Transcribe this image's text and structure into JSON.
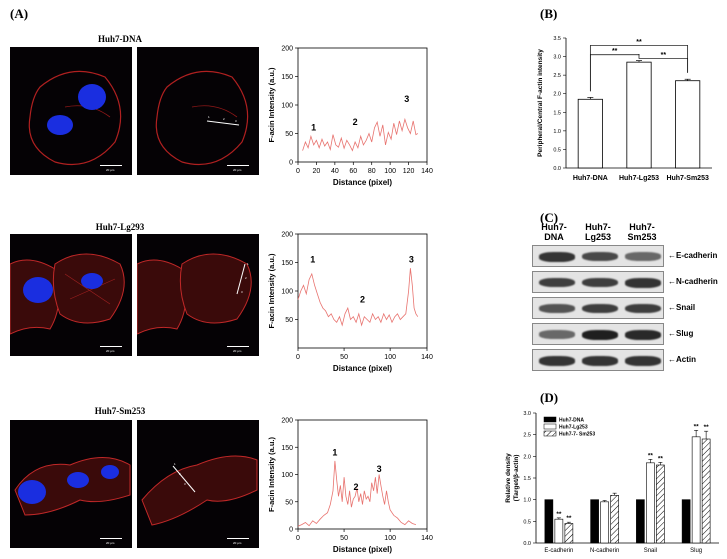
{
  "panel_labels": {
    "a": "(A)",
    "b": "(B)",
    "c": "(C)",
    "d": "(D)"
  },
  "panel_a": {
    "rows": [
      {
        "title": "Huh7-DNA",
        "scale_text": "20 µm",
        "line_numbers": [
          "1",
          "2",
          "3"
        ]
      },
      {
        "title": "Huh7-Lg293",
        "scale_text": "20 µm",
        "line_numbers": [
          "1",
          "2",
          "3"
        ]
      },
      {
        "title": "Huh7-Sm253",
        "scale_text": "20 µm",
        "line_numbers": [
          "1",
          "2",
          "3"
        ]
      }
    ]
  },
  "colors": {
    "profile_line": "#e8736f",
    "bar_fill": "#ffffff",
    "bar_edge": "#000000",
    "blot_dark": "#1a1a1a"
  },
  "chart_data": [
    {
      "type": "line",
      "ylabel": "F-acin Intensity (a.u.)",
      "xlabel": "Distance (pixel)",
      "xlim": [
        0,
        140
      ],
      "ylim": [
        0,
        200
      ],
      "xticks": [
        "0",
        "20",
        "40",
        "60",
        "80",
        "100",
        "120",
        "140"
      ],
      "yticks": [
        "0",
        "50",
        "100",
        "150",
        "200"
      ],
      "annotations": [
        {
          "text": "1",
          "x": 17,
          "y": 55
        },
        {
          "text": "2",
          "x": 62,
          "y": 65
        },
        {
          "text": "3",
          "x": 118,
          "y": 105
        }
      ],
      "x": [
        5,
        8,
        11,
        14,
        17,
        20,
        23,
        26,
        29,
        32,
        35,
        38,
        41,
        44,
        47,
        50,
        53,
        56,
        59,
        62,
        65,
        68,
        71,
        74,
        77,
        80,
        83,
        86,
        89,
        92,
        95,
        98,
        101,
        104,
        107,
        110,
        113,
        116,
        119,
        122,
        125,
        128,
        130
      ],
      "y": [
        20,
        35,
        25,
        45,
        30,
        38,
        25,
        40,
        28,
        35,
        22,
        48,
        30,
        26,
        42,
        24,
        38,
        30,
        20,
        35,
        25,
        45,
        30,
        38,
        50,
        35,
        60,
        70,
        45,
        65,
        30,
        52,
        40,
        68,
        48,
        72,
        55,
        75,
        60,
        50,
        72,
        48,
        50
      ]
    },
    {
      "type": "line",
      "ylabel": "F-acin Intensity (a.u.)",
      "xlabel": "Distance (pixel)",
      "xlim": [
        0,
        140
      ],
      "ylim": [
        0,
        200
      ],
      "xticks": [
        "0",
        "50",
        "100",
        "140"
      ],
      "yticks": [
        "50",
        "100",
        "150",
        "200"
      ],
      "annotations": [
        {
          "text": "1",
          "x": 16,
          "y": 150
        },
        {
          "text": "2",
          "x": 70,
          "y": 80
        },
        {
          "text": "3",
          "x": 123,
          "y": 150
        }
      ],
      "x": [
        0,
        3,
        6,
        9,
        12,
        15,
        18,
        21,
        24,
        27,
        30,
        33,
        36,
        39,
        42,
        45,
        48,
        51,
        54,
        57,
        60,
        63,
        66,
        69,
        72,
        75,
        78,
        81,
        84,
        87,
        90,
        93,
        96,
        99,
        102,
        105,
        108,
        111,
        114,
        117,
        120,
        122,
        124,
        126,
        128,
        130
      ],
      "y": [
        85,
        100,
        110,
        95,
        120,
        130,
        110,
        95,
        80,
        70,
        65,
        55,
        60,
        50,
        45,
        55,
        40,
        60,
        70,
        50,
        55,
        45,
        60,
        40,
        55,
        50,
        45,
        60,
        50,
        55,
        45,
        60,
        50,
        58,
        45,
        55,
        60,
        50,
        55,
        60,
        100,
        140,
        110,
        70,
        60,
        55
      ]
    },
    {
      "type": "line",
      "ylabel": "F-acin Intensity (a.u.)",
      "xlabel": "Distance (pixel)",
      "xlim": [
        0,
        140
      ],
      "ylim": [
        0,
        200
      ],
      "xticks": [
        "0",
        "50",
        "100",
        "140"
      ],
      "yticks": [
        "0",
        "50",
        "100",
        "150",
        "200"
      ],
      "annotations": [
        {
          "text": "1",
          "x": 40,
          "y": 135
        },
        {
          "text": "2",
          "x": 63,
          "y": 72
        },
        {
          "text": "3",
          "x": 88,
          "y": 105
        }
      ],
      "x": [
        0,
        4,
        8,
        12,
        16,
        20,
        24,
        28,
        32,
        35,
        38,
        40,
        42,
        44,
        46,
        48,
        50,
        52,
        54,
        56,
        58,
        60,
        62,
        64,
        66,
        68,
        70,
        72,
        74,
        76,
        78,
        80,
        82,
        84,
        86,
        88,
        90,
        92,
        94,
        96,
        98,
        100,
        104,
        108,
        112,
        116,
        120,
        124,
        128
      ],
      "y": [
        5,
        8,
        12,
        6,
        15,
        10,
        18,
        25,
        30,
        45,
        70,
        125,
        90,
        60,
        80,
        50,
        95,
        60,
        45,
        70,
        40,
        55,
        60,
        75,
        50,
        65,
        45,
        70,
        55,
        60,
        50,
        85,
        70,
        95,
        65,
        100,
        80,
        60,
        45,
        70,
        50,
        35,
        25,
        20,
        12,
        8,
        15,
        10,
        8
      ]
    },
    {
      "type": "bar",
      "categories": [
        "Huh7-DNA",
        "Huh7-Lg253",
        "Huh7-Sm253"
      ],
      "values": [
        1.85,
        2.85,
        2.35
      ],
      "errors": [
        0.05,
        0.04,
        0.04
      ],
      "ylabel": "Peripheral/Central F-actin intensity",
      "ylim": [
        0,
        3.5
      ],
      "yticks": [
        "0.0",
        "0.5",
        "1.0",
        "1.5",
        "2.0",
        "2.5",
        "3.0",
        "3.5"
      ],
      "significance": [
        {
          "from": 0,
          "to": 1,
          "text": "**"
        },
        {
          "from": 1,
          "to": 2,
          "text": "**"
        },
        {
          "from": 0,
          "to": 2,
          "text": "**"
        }
      ]
    },
    {
      "type": "bar",
      "categories": [
        "E-cadherin",
        "N-cadherin",
        "Snail",
        "Slug"
      ],
      "series": [
        {
          "name": "Huh7-DNA",
          "values": [
            1.0,
            1.0,
            1.0,
            1.0
          ],
          "errors": [
            0,
            0,
            0,
            0
          ],
          "fill": "solid"
        },
        {
          "name": "Huh7-Lg253",
          "values": [
            0.55,
            0.95,
            1.85,
            2.45
          ],
          "errors": [
            0.03,
            0.03,
            0.08,
            0.15
          ],
          "fill": "white"
        },
        {
          "name": "Huh7-7- Sm253",
          "values": [
            0.45,
            1.1,
            1.8,
            2.4
          ],
          "errors": [
            0.03,
            0.05,
            0.06,
            0.18
          ],
          "fill": "hatch"
        }
      ],
      "stars": [
        {
          "cat": 0,
          "series": 1,
          "text": "**"
        },
        {
          "cat": 0,
          "series": 2,
          "text": "**"
        },
        {
          "cat": 2,
          "series": 1,
          "text": "**"
        },
        {
          "cat": 2,
          "series": 2,
          "text": "**"
        },
        {
          "cat": 3,
          "series": 1,
          "text": "**"
        },
        {
          "cat": 3,
          "series": 2,
          "text": "**"
        }
      ],
      "ylabel": "Relative density (Target/β-actin)",
      "ylim": [
        0,
        3.0
      ],
      "yticks": [
        "0.0",
        "0.5",
        "1.0",
        "1.5",
        "2.0",
        "2.5",
        "3.0"
      ],
      "legend": "top-left"
    }
  ],
  "western_blot": {
    "headers": [
      "Huh7-\nDNA",
      "Huh7-\nLg253",
      "Huh7-\nSm253"
    ],
    "bands": [
      {
        "label": "E-cadherin",
        "intensity": [
          0.85,
          0.75,
          0.6
        ]
      },
      {
        "label": "N-cadherin",
        "intensity": [
          0.8,
          0.8,
          0.85
        ]
      },
      {
        "label": "Snail",
        "intensity": [
          0.7,
          0.8,
          0.8
        ]
      },
      {
        "label": "Slug",
        "intensity": [
          0.6,
          0.95,
          0.9
        ]
      },
      {
        "label": "Actin",
        "intensity": [
          0.85,
          0.85,
          0.85
        ]
      }
    ]
  }
}
